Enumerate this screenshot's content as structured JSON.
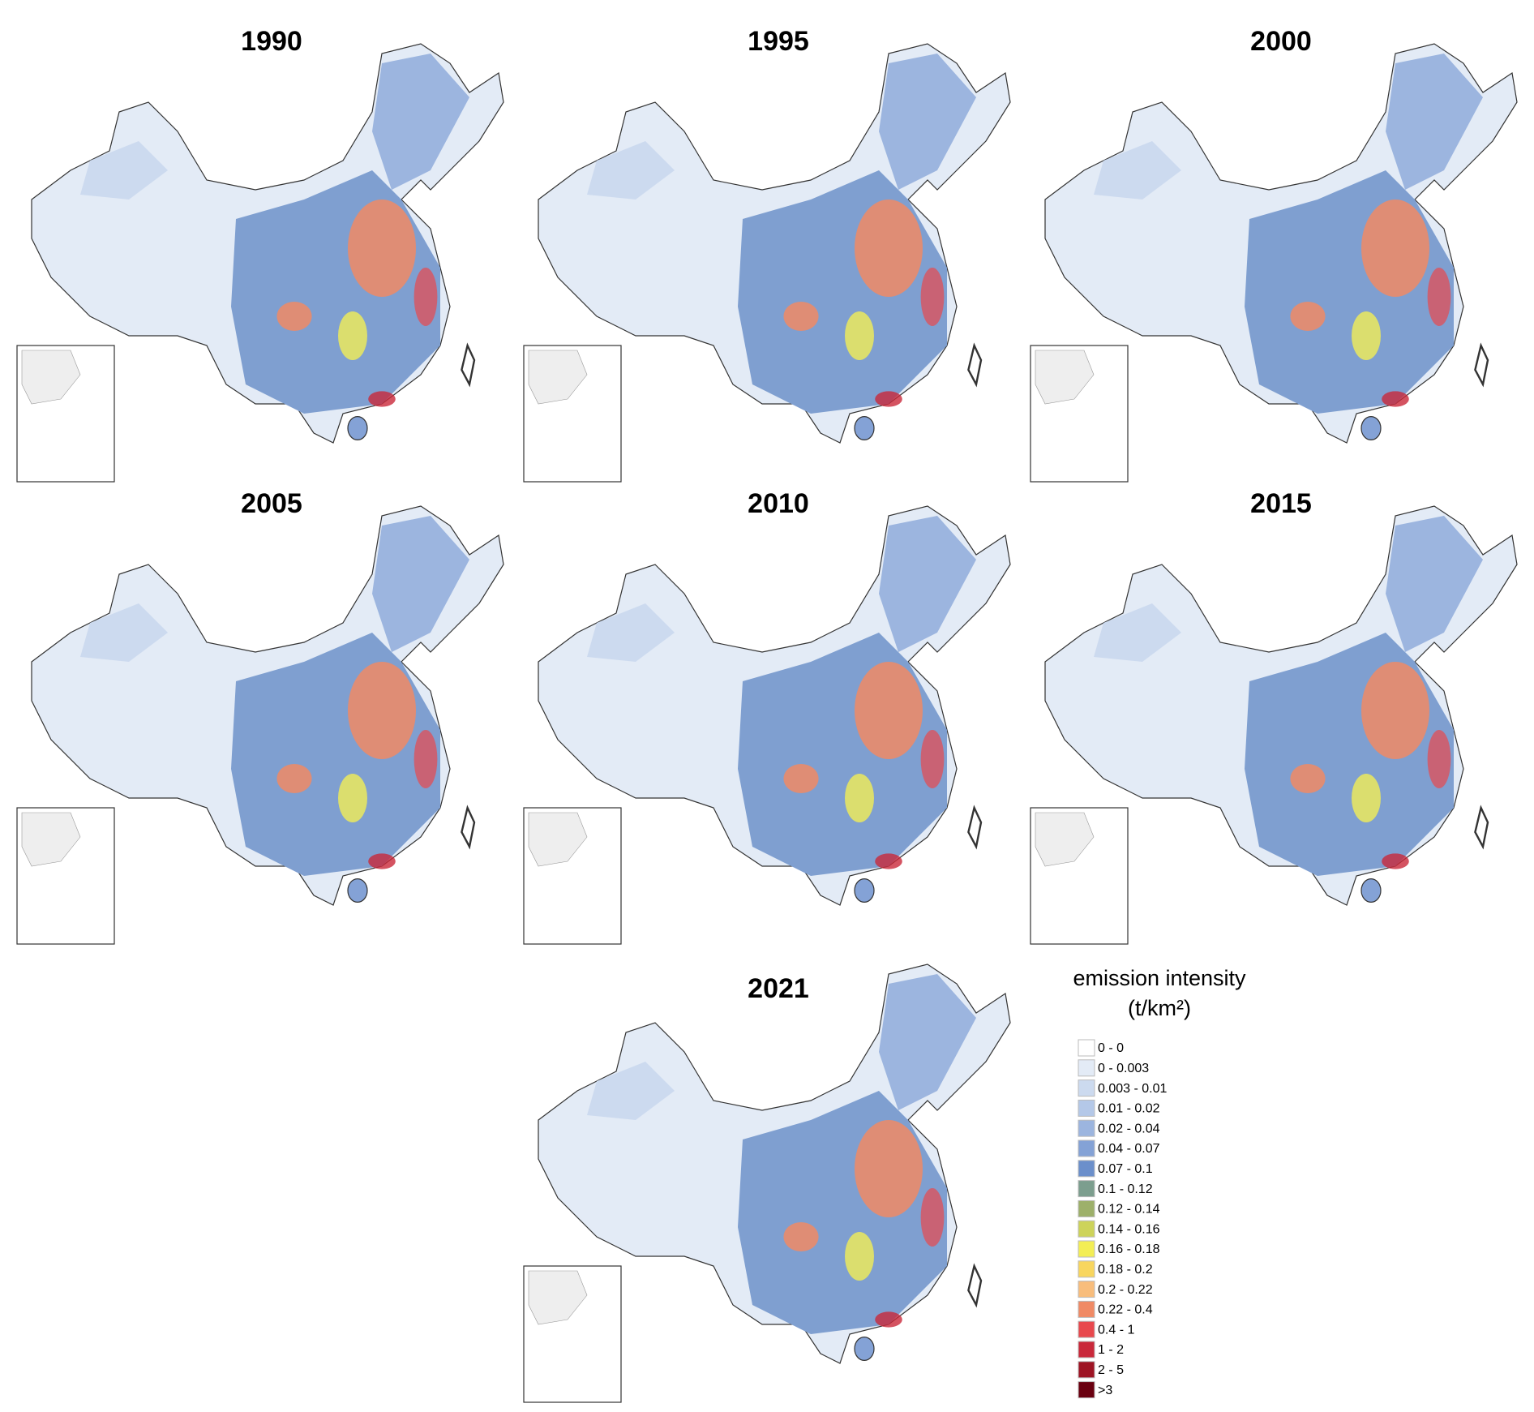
{
  "panels": [
    {
      "title": "1990"
    },
    {
      "title": "1995"
    },
    {
      "title": "2000"
    },
    {
      "title": "2005"
    },
    {
      "title": "2010"
    },
    {
      "title": "2015"
    },
    {
      "title": "2021"
    }
  ],
  "legend": {
    "title": "emission intensity",
    "unit": "(t/km²)",
    "items": [
      {
        "label": "0 - 0",
        "color": "#ffffff"
      },
      {
        "label": "0 - 0.003",
        "color": "#e3ebf6"
      },
      {
        "label": "0.003 - 0.01",
        "color": "#ccdaef"
      },
      {
        "label": "0.01 - 0.02",
        "color": "#b4c8e8"
      },
      {
        "label": "0.02 - 0.04",
        "color": "#9cb5df"
      },
      {
        "label": "0.04 - 0.07",
        "color": "#84a2d6"
      },
      {
        "label": "0.07 - 0.1",
        "color": "#6b8fcb"
      },
      {
        "label": "0.1 - 0.12",
        "color": "#7c9e8e"
      },
      {
        "label": "0.12 - 0.14",
        "color": "#9db06a"
      },
      {
        "label": "0.14 - 0.16",
        "color": "#cdd35a"
      },
      {
        "label": "0.16 - 0.18",
        "color": "#f3ee55"
      },
      {
        "label": "0.18 - 0.2",
        "color": "#f8d65e"
      },
      {
        "label": "0.2 - 0.22",
        "color": "#f8bd7c"
      },
      {
        "label": "0.22 - 0.4",
        "color": "#f08a65"
      },
      {
        "label": "0.4 - 1",
        "color": "#e8484d"
      },
      {
        "label": "1 - 2",
        "color": "#c9283a"
      },
      {
        "label": "2 - 5",
        "color": "#9e1424"
      },
      {
        "label": ">3",
        "color": "#6a0010"
      }
    ]
  }
}
